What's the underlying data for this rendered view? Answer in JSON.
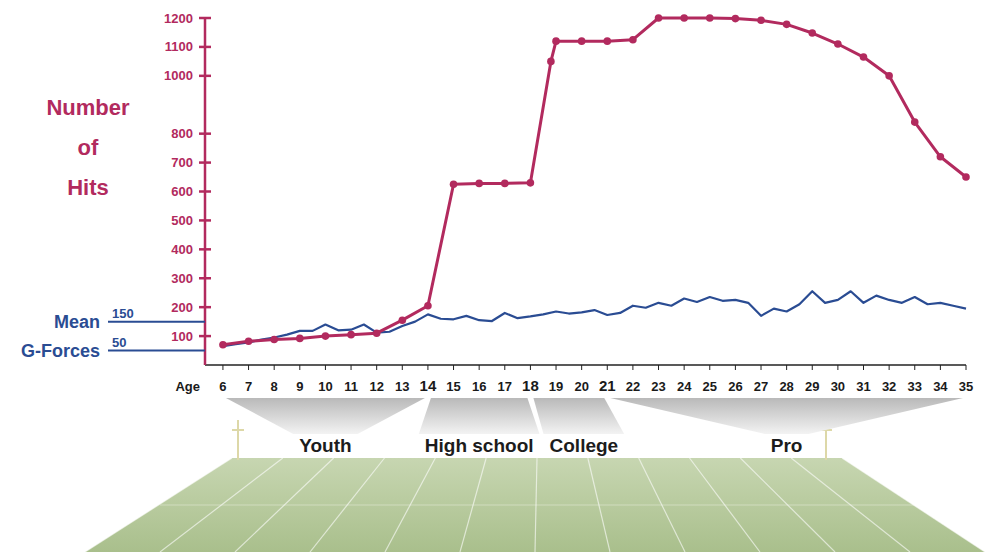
{
  "chart_data": {
    "type": "line",
    "x_label": "Age",
    "xlim": [
      5.3,
      35
    ],
    "xticks": [
      6,
      7,
      8,
      9,
      10,
      11,
      12,
      13,
      14,
      15,
      16,
      17,
      18,
      19,
      20,
      21,
      22,
      23,
      24,
      25,
      26,
      27,
      28,
      29,
      30,
      31,
      32,
      33,
      34,
      35
    ],
    "ylim": [
      0,
      1200
    ],
    "yticks": [
      100,
      200,
      300,
      400,
      500,
      600,
      700,
      800,
      1000,
      1100,
      1200
    ],
    "y2lim": [
      0,
      1200
    ],
    "y2ticks": [
      50,
      150
    ],
    "series": [
      {
        "name": "Number of Hits",
        "color": "#b22a5e",
        "marker": "circle",
        "line_style": "solid",
        "x": [
          6,
          7,
          8,
          9,
          10,
          11,
          12,
          13,
          14,
          15,
          16,
          17,
          18,
          18.8,
          19,
          20,
          21,
          22,
          23,
          24,
          25,
          26,
          27,
          28,
          29,
          30,
          31,
          32,
          33,
          34,
          35
        ],
        "values": [
          70,
          82,
          88,
          92,
          100,
          105,
          110,
          155,
          205,
          625,
          628,
          628,
          630,
          1050,
          1120,
          1120,
          1120,
          1125,
          1200,
          1200,
          1200,
          1198,
          1192,
          1178,
          1148,
          1110,
          1065,
          1000,
          840,
          720,
          650
        ]
      },
      {
        "name": "Mean G-Forces",
        "color": "#2a4c93",
        "marker": "none",
        "line_style": "solid",
        "axis": "y2",
        "x": [
          6,
          6.5,
          7,
          7.5,
          8,
          8.5,
          9,
          9.5,
          10,
          10.5,
          11,
          11.5,
          12,
          12.5,
          13,
          13.5,
          14,
          14.5,
          15,
          15.5,
          16,
          16.5,
          17,
          17.5,
          18,
          18.5,
          19,
          19.5,
          20,
          20.5,
          21,
          21.5,
          22,
          22.5,
          23,
          23.5,
          24,
          24.5,
          25,
          25.5,
          26,
          26.5,
          27,
          27.5,
          28,
          28.5,
          29,
          29.5,
          30,
          30.5,
          31,
          31.5,
          32,
          32.5,
          33,
          33.5,
          34,
          34.5,
          35
        ],
        "values": [
          65,
          72,
          78,
          88,
          95,
          105,
          118,
          118,
          140,
          120,
          122,
          140,
          112,
          115,
          135,
          150,
          175,
          160,
          158,
          170,
          155,
          152,
          180,
          162,
          168,
          175,
          185,
          178,
          182,
          190,
          173,
          180,
          205,
          198,
          215,
          205,
          230,
          218,
          235,
          222,
          225,
          215,
          170,
          195,
          185,
          210,
          255,
          215,
          225,
          255,
          215,
          240,
          225,
          215,
          235,
          210,
          215,
          205,
          195
        ]
      }
    ],
    "levels": [
      {
        "label": "Youth",
        "start": 6,
        "end": 14
      },
      {
        "label": "High school",
        "start": 14,
        "end": 18
      },
      {
        "label": "College",
        "start": 18,
        "end": 21
      },
      {
        "label": "Pro",
        "start": 21,
        "end": 35
      }
    ]
  }
}
